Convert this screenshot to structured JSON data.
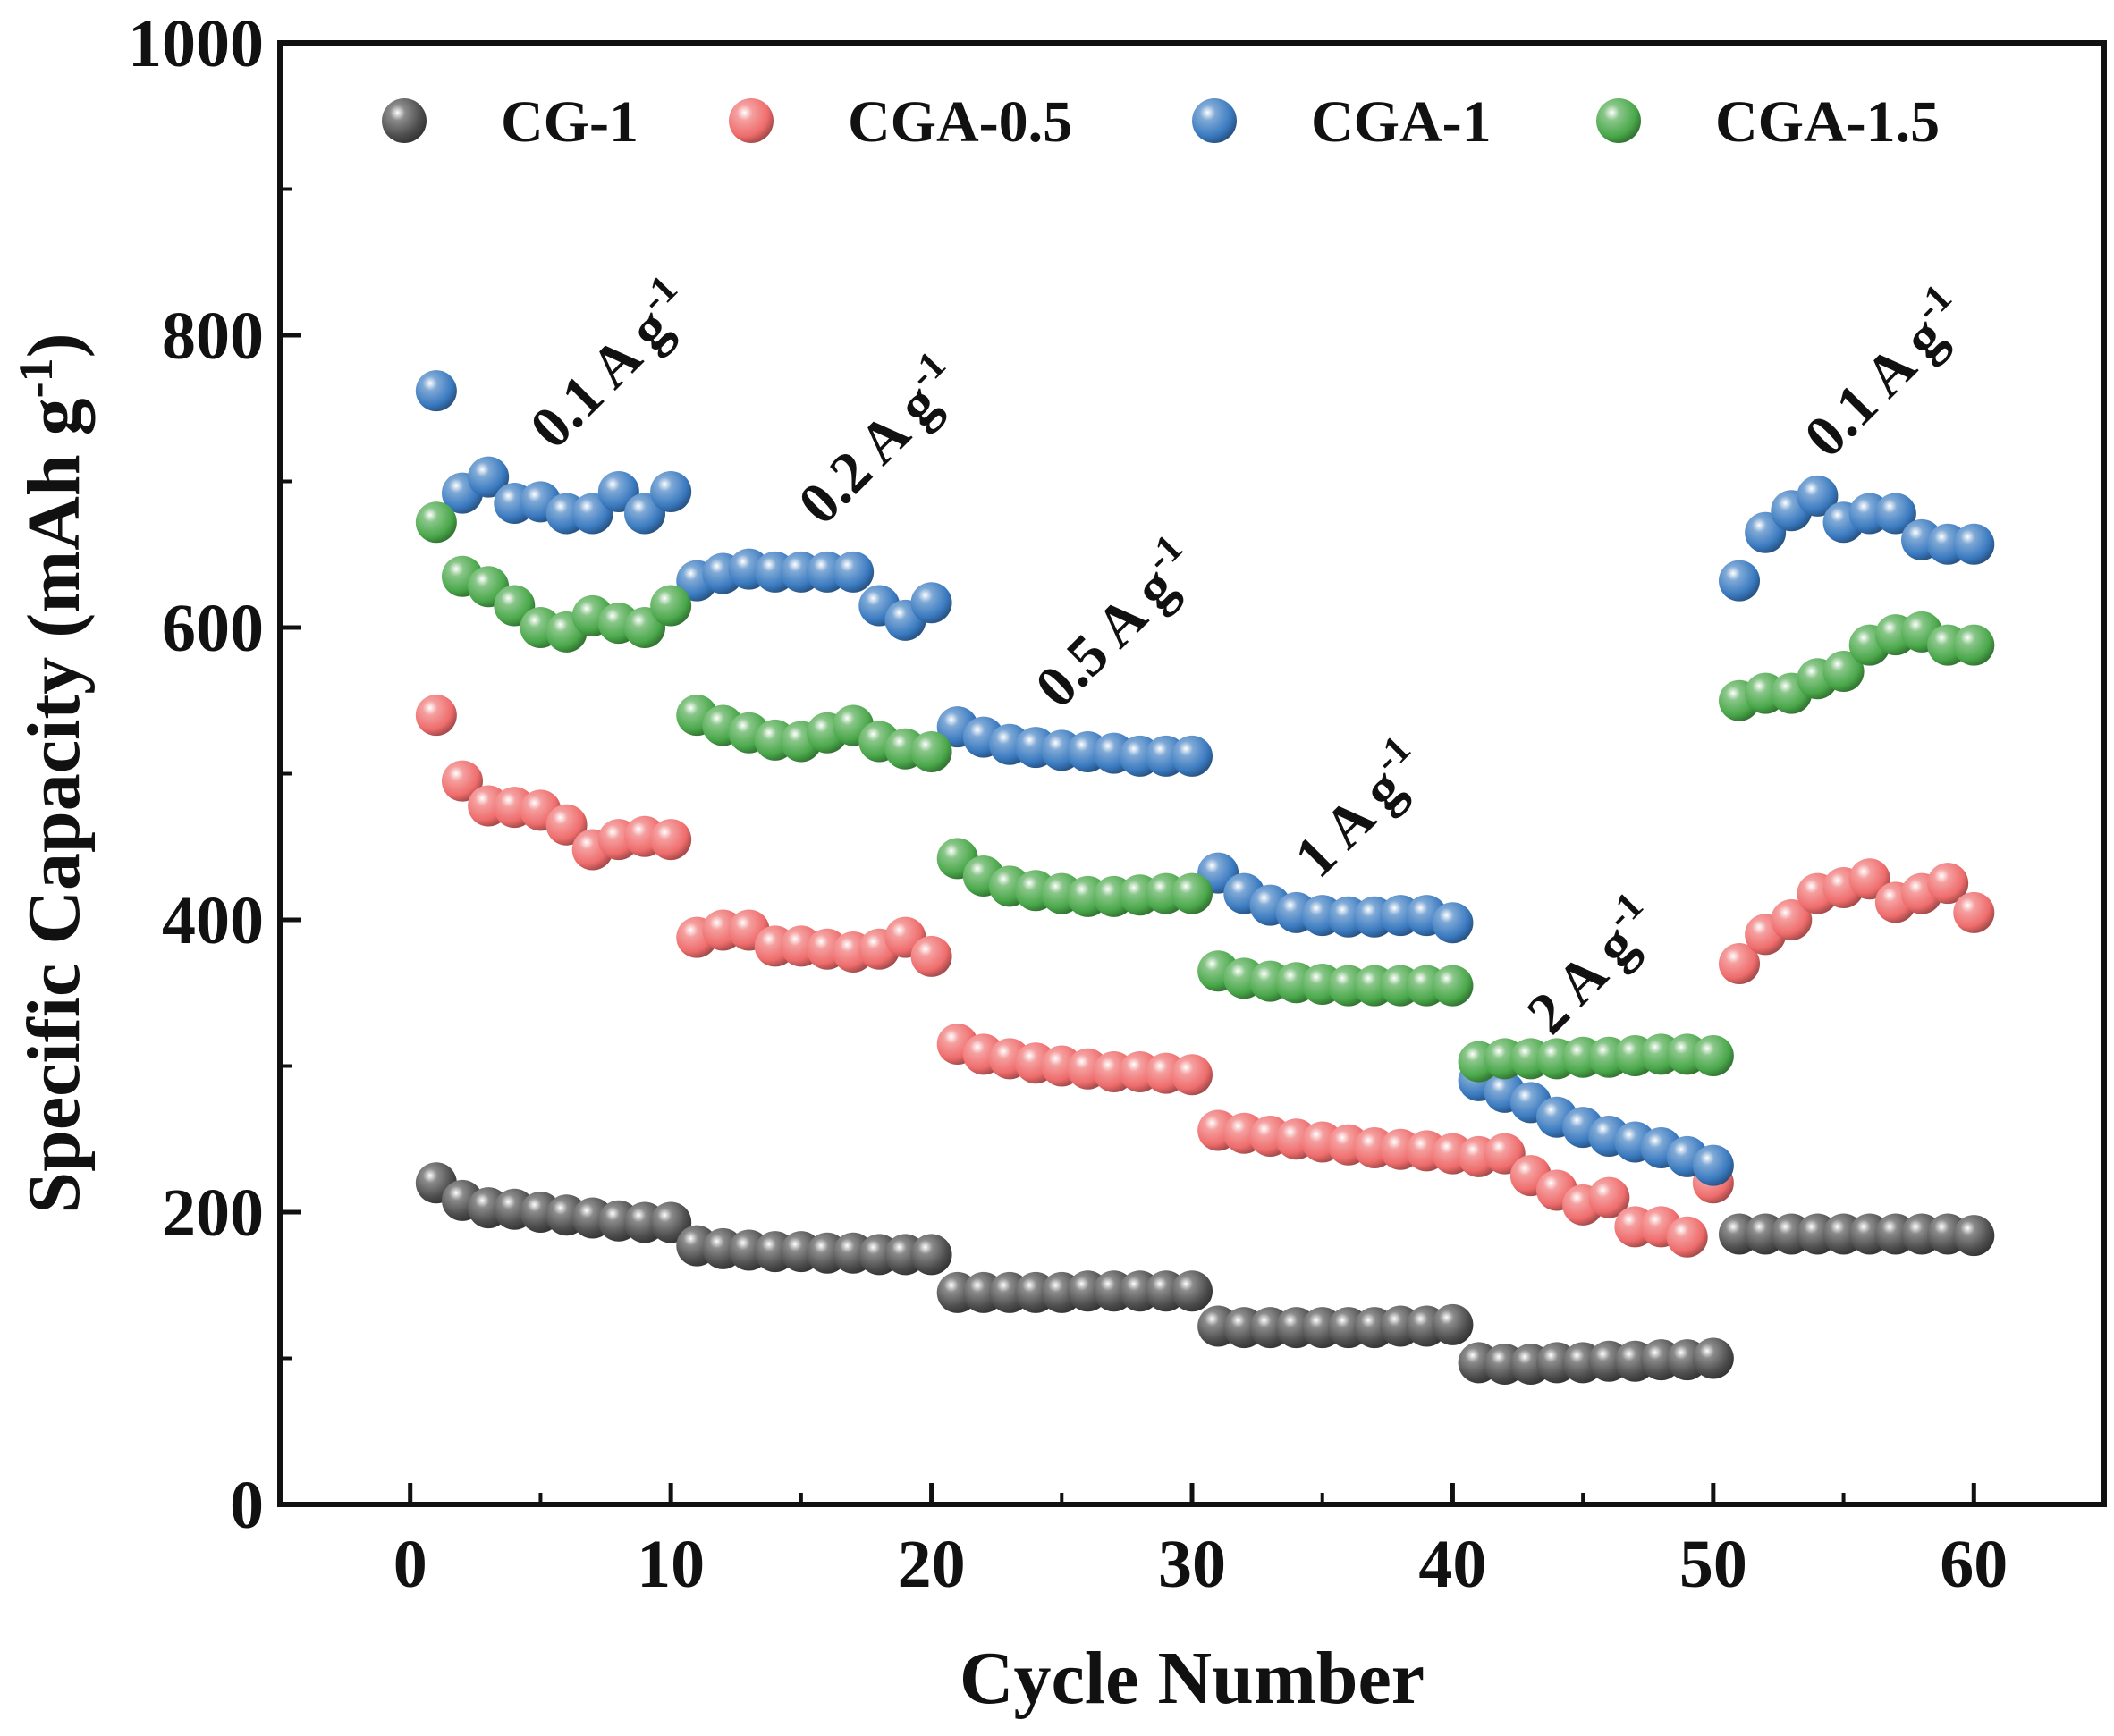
{
  "chart_data": {
    "type": "scatter",
    "xlabel": "Cycle Number",
    "ylabel": "Specific Capacity (mAh g",
    "ylabel_superscript": "-1",
    "ylabel_suffix": ")",
    "xlim": [
      -5,
      65
    ],
    "ylim": [
      0,
      1000
    ],
    "x_ticks": [
      0,
      10,
      20,
      30,
      40,
      50,
      60
    ],
    "x_tick_labels": [
      "0",
      "10",
      "20",
      "30",
      "40",
      "50",
      "60"
    ],
    "y_ticks": [
      0,
      200,
      400,
      600,
      800,
      1000
    ],
    "y_tick_labels": [
      "0",
      "200",
      "400",
      "600",
      "800",
      "1000"
    ],
    "legend_position": "top",
    "grid": false,
    "series": [
      {
        "name": "CG-1",
        "color": "#4d4d4d",
        "x": [
          1,
          2,
          3,
          4,
          5,
          6,
          7,
          8,
          9,
          10,
          11,
          12,
          13,
          14,
          15,
          16,
          17,
          18,
          19,
          20,
          21,
          22,
          23,
          24,
          25,
          26,
          27,
          28,
          29,
          30,
          31,
          32,
          33,
          34,
          35,
          36,
          37,
          38,
          39,
          40,
          41,
          42,
          43,
          44,
          45,
          46,
          47,
          48,
          49,
          50,
          51,
          52,
          53,
          54,
          55,
          56,
          57,
          58,
          59,
          60
        ],
        "y": [
          220,
          208,
          203,
          202,
          200,
          198,
          196,
          194,
          193,
          193,
          177,
          175,
          174,
          173,
          173,
          172,
          172,
          171,
          171,
          171,
          145,
          145,
          145,
          145,
          145,
          146,
          146,
          146,
          146,
          146,
          122,
          121,
          121,
          121,
          121,
          121,
          121,
          122,
          122,
          123,
          97,
          96,
          96,
          97,
          97,
          98,
          98,
          99,
          99,
          100,
          185,
          185,
          185,
          185,
          185,
          185,
          185,
          185,
          185,
          184
        ]
      },
      {
        "name": "CGA-0.5",
        "color": "#ef6c6c",
        "x": [
          1,
          2,
          3,
          4,
          5,
          6,
          7,
          8,
          9,
          10,
          11,
          12,
          13,
          14,
          15,
          16,
          17,
          18,
          19,
          20,
          21,
          22,
          23,
          24,
          25,
          26,
          27,
          28,
          29,
          30,
          31,
          32,
          33,
          34,
          35,
          36,
          37,
          38,
          39,
          40,
          41,
          42,
          43,
          44,
          45,
          46,
          47,
          48,
          49,
          50,
          51,
          52,
          53,
          54,
          55,
          56,
          57,
          58,
          59,
          60
        ],
        "y": [
          540,
          495,
          478,
          477,
          475,
          465,
          448,
          455,
          457,
          455,
          388,
          393,
          393,
          382,
          382,
          380,
          378,
          380,
          388,
          375,
          315,
          308,
          305,
          302,
          300,
          298,
          296,
          296,
          295,
          294,
          256,
          254,
          252,
          250,
          248,
          246,
          244,
          243,
          242,
          240,
          238,
          240,
          225,
          215,
          205,
          210,
          190,
          190,
          183,
          220,
          370,
          390,
          400,
          418,
          422,
          428,
          412,
          418,
          425,
          405
        ]
      },
      {
        "name": "CGA-1",
        "color": "#3a7ac0",
        "x": [
          1,
          2,
          3,
          4,
          5,
          6,
          7,
          8,
          9,
          10,
          11,
          12,
          13,
          14,
          15,
          16,
          17,
          18,
          19,
          20,
          21,
          22,
          23,
          24,
          25,
          26,
          27,
          28,
          29,
          30,
          31,
          32,
          33,
          34,
          35,
          36,
          37,
          38,
          39,
          40,
          41,
          42,
          43,
          44,
          45,
          46,
          47,
          48,
          49,
          50,
          51,
          52,
          53,
          54,
          55,
          56,
          57,
          58,
          59,
          60
        ],
        "y": [
          762,
          692,
          703,
          685,
          686,
          678,
          678,
          693,
          678,
          693,
          632,
          637,
          640,
          638,
          638,
          638,
          638,
          615,
          605,
          617,
          532,
          525,
          520,
          518,
          516,
          515,
          514,
          512,
          512,
          512,
          432,
          418,
          410,
          405,
          403,
          402,
          402,
          403,
          403,
          398,
          290,
          282,
          275,
          265,
          258,
          252,
          248,
          244,
          238,
          232,
          632,
          665,
          680,
          690,
          672,
          678,
          678,
          660,
          657,
          657
        ]
      },
      {
        "name": "CGA-1.5",
        "color": "#4aa84a",
        "x": [
          1,
          2,
          3,
          4,
          5,
          6,
          7,
          8,
          9,
          10,
          11,
          12,
          13,
          14,
          15,
          16,
          17,
          18,
          19,
          20,
          21,
          22,
          23,
          24,
          25,
          26,
          27,
          28,
          29,
          30,
          31,
          32,
          33,
          34,
          35,
          36,
          37,
          38,
          39,
          40,
          41,
          42,
          43,
          44,
          45,
          46,
          47,
          48,
          49,
          50,
          51,
          52,
          53,
          54,
          55,
          56,
          57,
          58,
          59,
          60
        ],
        "y": [
          672,
          635,
          628,
          615,
          600,
          597,
          608,
          603,
          600,
          615,
          540,
          533,
          528,
          523,
          522,
          528,
          533,
          522,
          517,
          515,
          442,
          430,
          423,
          420,
          418,
          416,
          416,
          417,
          418,
          418,
          365,
          360,
          358,
          357,
          356,
          355,
          355,
          355,
          355,
          355,
          303,
          305,
          305,
          305,
          306,
          306,
          307,
          308,
          308,
          307,
          550,
          555,
          555,
          565,
          570,
          588,
          595,
          597,
          588,
          588
        ]
      }
    ],
    "annotations": [
      {
        "text": "0.1 A g",
        "sup": "-1"
      },
      {
        "text": "0.2 A g",
        "sup": "-1"
      },
      {
        "text": "0.5 A g",
        "sup": "-1"
      },
      {
        "text": "1 A g",
        "sup": "-1"
      },
      {
        "text": "2 A g",
        "sup": "-1"
      },
      {
        "text": "0.1 A g",
        "sup": "-1"
      }
    ]
  }
}
